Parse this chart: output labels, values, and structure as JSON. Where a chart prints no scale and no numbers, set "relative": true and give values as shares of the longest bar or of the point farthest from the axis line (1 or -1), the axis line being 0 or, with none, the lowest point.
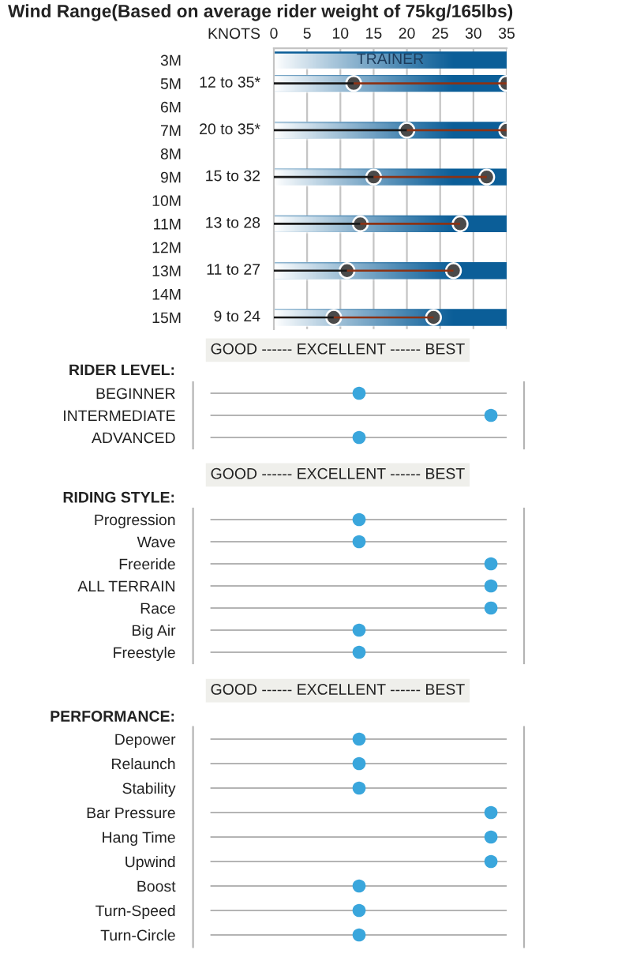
{
  "chart_data": [
    {
      "type": "bar",
      "orientation": "horizontal",
      "title": "Wind Range(Based on average rider weight of 75kg/165lbs)",
      "xlabel": "KNOTS",
      "categories": [
        "3M",
        "5M",
        "6M",
        "7M",
        "8M",
        "9M",
        "10M",
        "11M",
        "12M",
        "13M",
        "14M",
        "15M"
      ],
      "xlim": [
        0,
        35
      ],
      "xticks": [
        0,
        5,
        10,
        15,
        20,
        25,
        30,
        35
      ],
      "grid": "x",
      "marker": "circle",
      "series": [
        {
          "type": "bar",
          "color": "#0b5e98",
          "values": [
            35,
            35,
            null,
            35,
            null,
            35,
            null,
            35,
            null,
            35,
            null,
            35
          ],
          "value_labels": [
            "TRAINER",
            null,
            null,
            null,
            null,
            null,
            null,
            null,
            null,
            null,
            null,
            null
          ]
        },
        {
          "type": "bar",
          "color": "#1a1a1a",
          "values": [
            null,
            12,
            null,
            20,
            null,
            15,
            null,
            13,
            null,
            11,
            null,
            9
          ],
          "value_labels": [
            null,
            "12 to 35*",
            null,
            "20 to 35*",
            null,
            "15 to 32",
            null,
            "13 to 28",
            null,
            "11 to 27",
            null,
            "9 to 24"
          ]
        },
        {
          "type": "bar",
          "color": "#8b3214",
          "base": [
            null,
            12,
            null,
            20,
            null,
            15,
            null,
            13,
            null,
            11,
            null,
            9
          ],
          "values": [
            null,
            23,
            null,
            15,
            null,
            17,
            null,
            15,
            null,
            16,
            null,
            15
          ]
        },
        {
          "type": "scatter",
          "color": "#4a4a4a",
          "x": [
            "5M",
            "7M",
            "9M",
            "11M",
            "13M",
            "15M"
          ],
          "values": [
            12,
            20,
            15,
            13,
            11,
            9
          ]
        },
        {
          "type": "scatter",
          "color": "#4a4a4a",
          "x": [
            "5M",
            "7M",
            "9M",
            "11M",
            "13M",
            "15M"
          ],
          "values": [
            35,
            35,
            32,
            28,
            27,
            24
          ]
        }
      ]
    },
    {
      "type": "scatter",
      "orientation": "horizontal",
      "relative": true,
      "title": "RIDER LEVEL:",
      "xlabel": "GOOD ------ EXCELLENT ------ BEST",
      "categories": [
        "BEGINNER",
        "INTERMEDIATE",
        "ADVANCED"
      ],
      "grid": "y",
      "marker": "circle",
      "series": [
        {
          "color": "#3aa6dc",
          "values": [
            0.53,
            1,
            0.53
          ]
        }
      ]
    },
    {
      "type": "scatter",
      "orientation": "horizontal",
      "relative": true,
      "title": "RIDING STYLE:",
      "xlabel": "GOOD ------ EXCELLENT ------ BEST",
      "categories": [
        "Progression",
        "Wave",
        "Freeride",
        "ALL TERRAIN",
        "Race",
        "Big Air",
        "Freestyle"
      ],
      "grid": "y",
      "marker": "circle",
      "series": [
        {
          "color": "#3aa6dc",
          "values": [
            0.53,
            0.53,
            1,
            1,
            1,
            0.53,
            0.53
          ]
        }
      ]
    },
    {
      "type": "scatter",
      "orientation": "horizontal",
      "relative": true,
      "title": "PERFORMANCE:",
      "xlabel": "GOOD ------ EXCELLENT ------ BEST",
      "categories": [
        "Depower",
        "Relaunch",
        "Stability",
        "Bar Pressure",
        "Hang Time",
        "Upwind",
        "Boost",
        "Turn-Speed",
        "Turn-Circle"
      ],
      "grid": "y",
      "marker": "circle",
      "series": [
        {
          "color": "#3aa6dc",
          "values": [
            0.53,
            0.53,
            0.53,
            1,
            1,
            1,
            0.53,
            0.53,
            0.53
          ]
        }
      ]
    }
  ]
}
